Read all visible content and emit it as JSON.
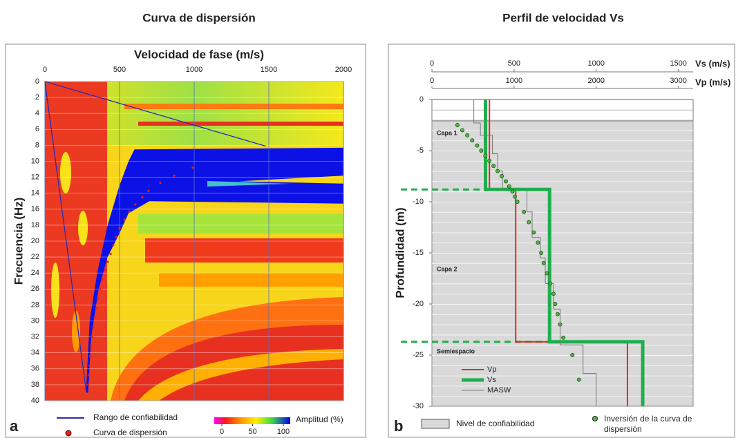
{
  "chart_data": [
    {
      "type": "dispersion-image",
      "panel_label": "a",
      "title": "Curva de dispersión",
      "x_label": "Velocidad de fase (m/s)",
      "y_label": "Frecuencia (Hz)",
      "xlim": [
        0,
        2000
      ],
      "xticks": [
        0,
        500,
        1000,
        1500,
        2000
      ],
      "ylim": [
        0,
        40
      ],
      "yticks": [
        0,
        2,
        4,
        6,
        8,
        10,
        12,
        14,
        16,
        18,
        20,
        22,
        24,
        26,
        28,
        30,
        32,
        34,
        36,
        38,
        40
      ],
      "y_inverted": true,
      "grid": true,
      "series": [
        {
          "name": "Rango de confiabilidad",
          "type": "line",
          "color": "#2b2bb0",
          "x": [
            0,
            1480,
            null,
            0,
            278
          ],
          "y": [
            0,
            8.1,
            null,
            0,
            39
          ]
        },
        {
          "name": "Curva de dispersión",
          "type": "scatter",
          "color": "#e0201b",
          "x": [
            990,
            866,
            773,
            694,
            653,
            606,
            565,
            532,
            500,
            477,
            458,
            440,
            421,
            403,
            384,
            368,
            355,
            343,
            333,
            324,
            316,
            309,
            303,
            298,
            293,
            290
          ],
          "y": [
            10.8,
            11.8,
            12.7,
            13.7,
            14.5,
            15.4,
            16.3,
            17.3,
            18.4,
            19.5,
            20.5,
            21.6,
            22.6,
            23.6,
            24.8,
            26,
            27.2,
            28.4,
            29.6,
            30.8,
            32,
            33.2,
            34.4,
            35.6,
            36.8,
            38
          ]
        }
      ],
      "colorbar": {
        "label": "Amplitud (%)",
        "lim": [
          0,
          100
        ],
        "ticks": [
          0,
          50,
          100
        ]
      }
    },
    {
      "type": "profile",
      "panel_label": "b",
      "title": "Perfil de velocidad Vs",
      "x_label": "Vs (m/s)",
      "x2_label": "Vp (m/s)",
      "y_label": "Profundidad (m)",
      "xlim": [
        0,
        1590
      ],
      "xticks": [
        0,
        500,
        1000,
        1500
      ],
      "x2lim": [
        0,
        3180
      ],
      "x2ticks": [
        0,
        1000,
        2000,
        3000
      ],
      "ylim": [
        -30,
        0
      ],
      "yticks": [
        0,
        -5,
        -10,
        -15,
        -20,
        -25,
        -30
      ],
      "confidence_zone": {
        "name": "Nivel de confiabilidad",
        "top": -2.1
      },
      "layer_boundaries": [
        -8.8,
        -23.7
      ],
      "layer_labels": [
        "Capa 1",
        "Capa 2",
        "Semiespacio"
      ],
      "series": [
        {
          "name": "Vp",
          "type": "line",
          "axis": "x2",
          "color": "#e8261f",
          "x": [
            700,
            700,
            1020,
            1020,
            2380,
            2380
          ],
          "y": [
            0,
            -8.8,
            -8.8,
            -23.7,
            -23.7,
            -30
          ]
        },
        {
          "name": "Vs",
          "type": "line",
          "color": "#1fae4e",
          "x": [
            326,
            326,
            716,
            716,
            1283,
            1283
          ],
          "y": [
            0,
            -8.8,
            -8.8,
            -23.7,
            -23.7,
            -30
          ]
        },
        {
          "name": "MASW",
          "type": "line",
          "color": "#777777",
          "x": [
            255,
            255,
            295,
            295,
            368,
            368,
            400,
            400,
            430,
            430,
            578,
            578,
            610,
            610,
            660,
            660,
            690,
            690,
            740,
            740,
            780,
            780,
            920,
            920,
            1000,
            1000
          ],
          "y": [
            0,
            -2.3,
            -2.3,
            -3.5,
            -3.5,
            -5.3,
            -5.3,
            -7,
            -7,
            -8.8,
            -8.8,
            -11,
            -11,
            -13.5,
            -13.5,
            -15.5,
            -15.5,
            -18,
            -18,
            -20.5,
            -20.5,
            -24,
            -24,
            -26.8,
            -26.8,
            -30
          ]
        },
        {
          "name": "Inversión de la curva de dispersión",
          "type": "scatter",
          "color": "#4cbb3c",
          "x": [
            155,
            185,
            215,
            245,
            275,
            300,
            325,
            350,
            375,
            400,
            425,
            450,
            470,
            490,
            505,
            520,
            560,
            590,
            620,
            645,
            665,
            680,
            700,
            720,
            740,
            750,
            765,
            780,
            800,
            855,
            895
          ],
          "y": [
            -2.5,
            -3,
            -3.5,
            -4,
            -4.5,
            -5,
            -5.5,
            -6,
            -6.5,
            -7,
            -7.5,
            -8,
            -8.5,
            -9,
            -9.5,
            -10,
            -11,
            -12,
            -13,
            -14,
            -15,
            -16,
            -17,
            -18,
            -19,
            -20,
            -21,
            -22,
            -23.3,
            -25,
            -27.4
          ]
        }
      ]
    }
  ]
}
